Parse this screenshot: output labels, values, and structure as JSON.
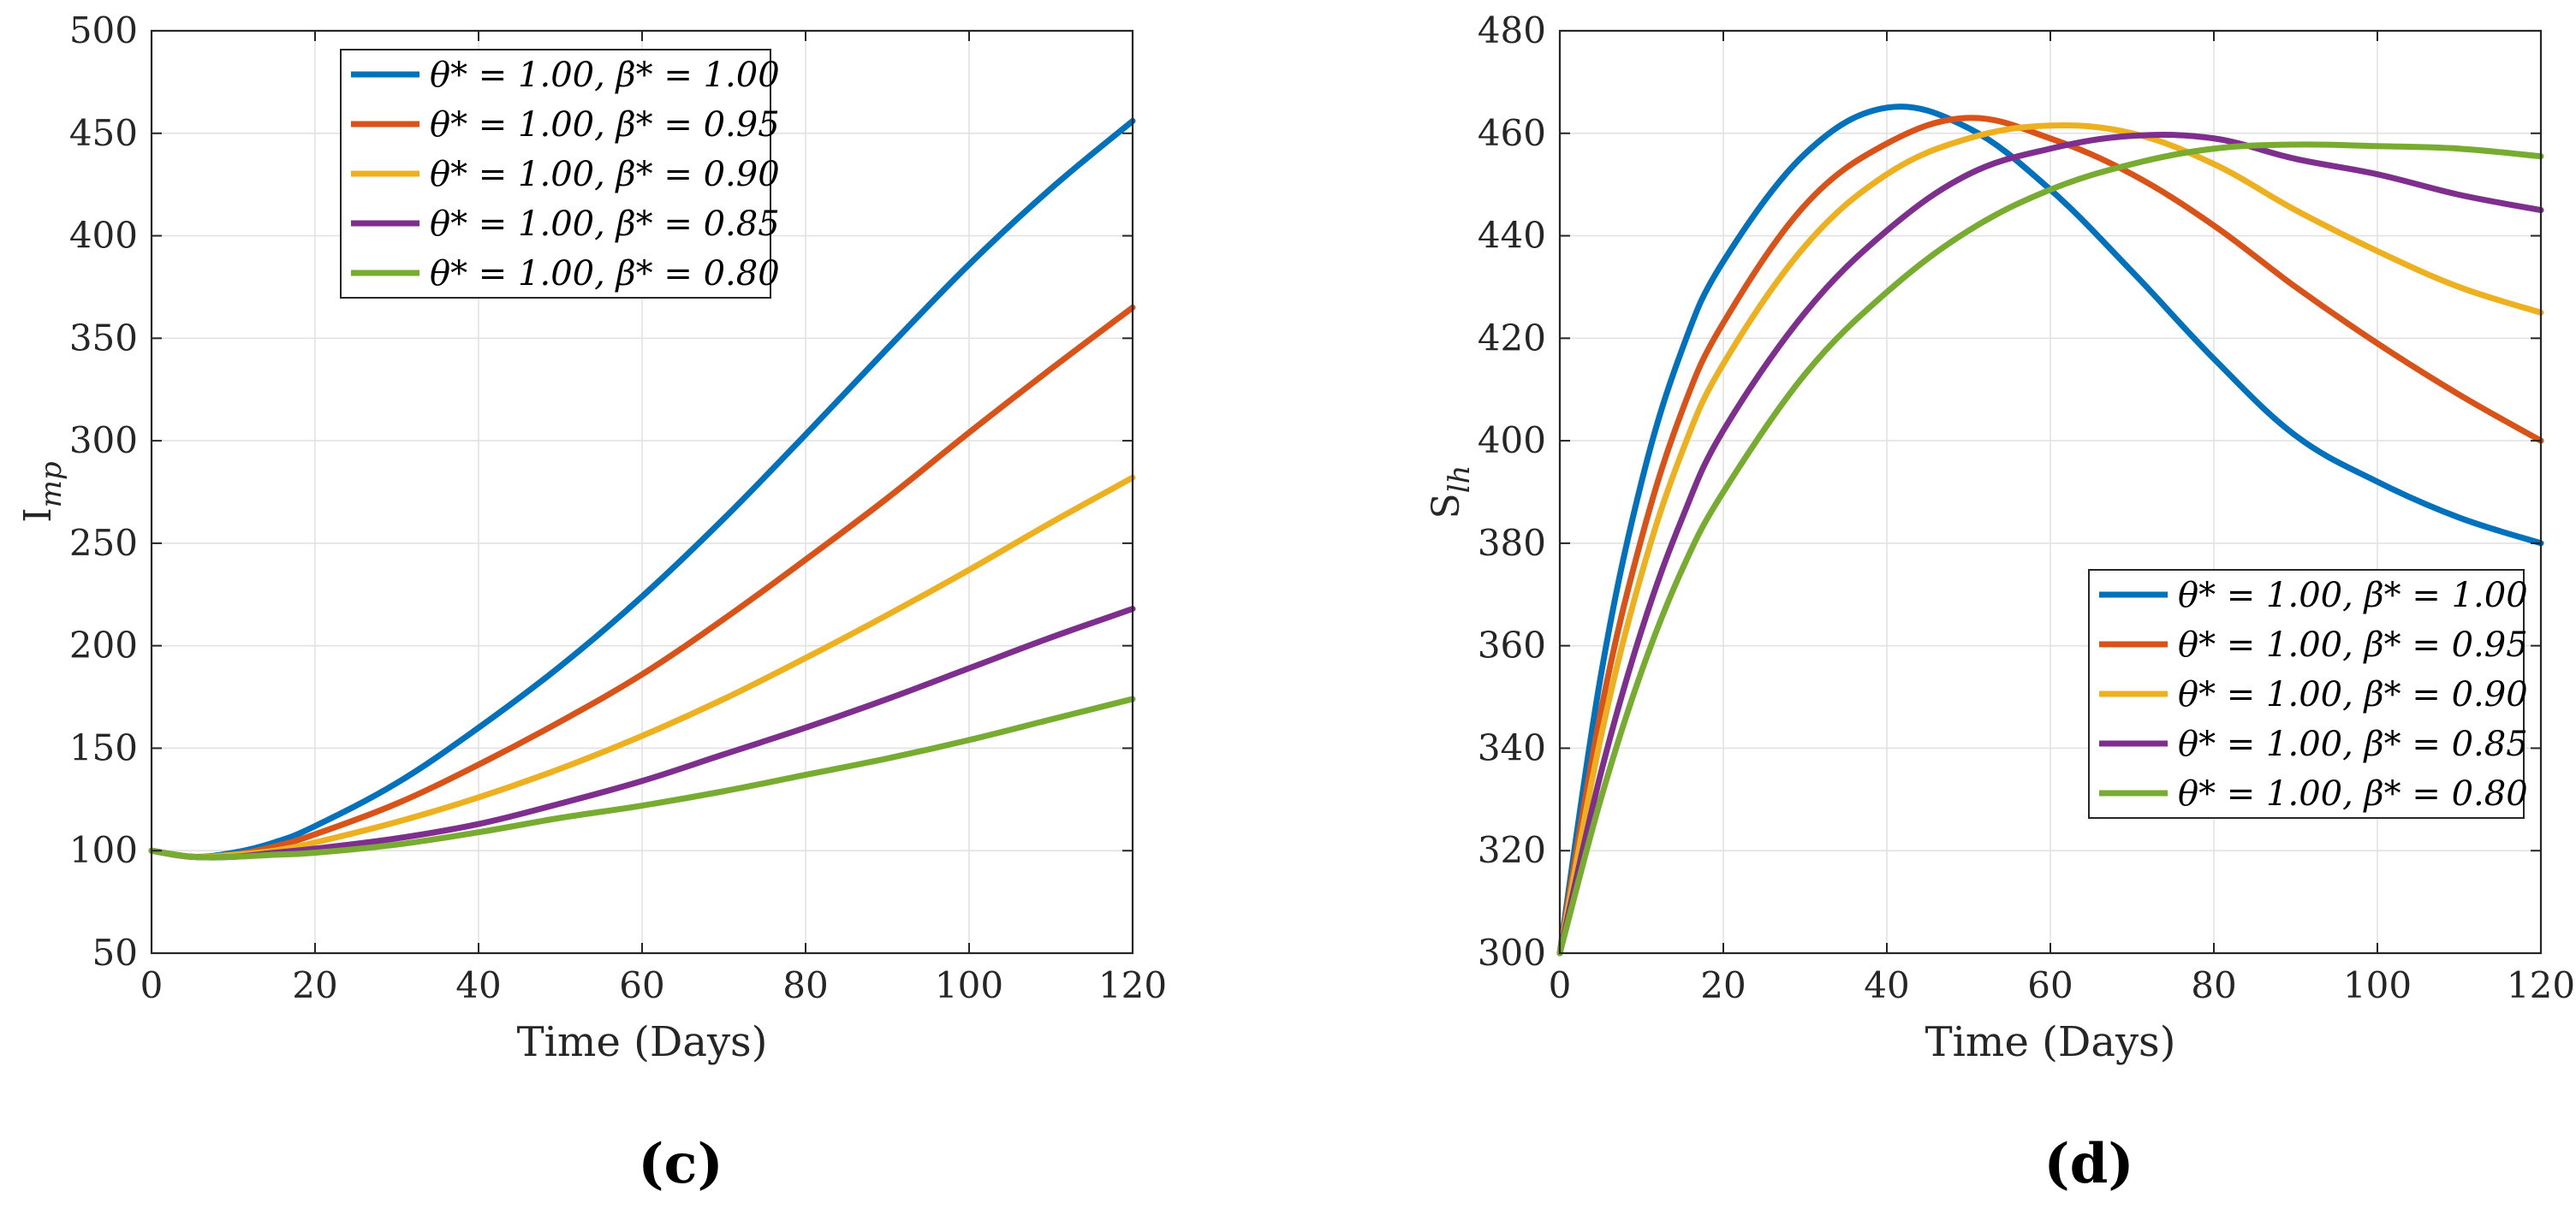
{
  "chart_data": [
    {
      "id": "c",
      "type": "line",
      "caption": "(c)",
      "xlabel": "Time (Days)",
      "ylabel": "I_mp",
      "ylabel_main": "I",
      "ylabel_sub": "mp",
      "xlim": [
        0,
        120
      ],
      "ylim": [
        50,
        500
      ],
      "xticks": [
        0,
        20,
        40,
        60,
        80,
        100,
        120
      ],
      "yticks": [
        50,
        100,
        150,
        200,
        250,
        300,
        350,
        400,
        450,
        500
      ],
      "grid": true,
      "legend_position": "top-center",
      "x": [
        0,
        5,
        10,
        15,
        20,
        30,
        40,
        50,
        60,
        70,
        80,
        90,
        100,
        110,
        120
      ],
      "series": [
        {
          "name": "θ* = 1.00, β* = 1.00",
          "color": "#0072BD",
          "values": [
            100,
            97,
            99,
            104,
            112,
            133,
            160,
            190,
            224,
            262,
            303,
            345,
            386,
            423,
            456
          ]
        },
        {
          "name": "θ* = 1.00, β* = 0.95",
          "color": "#D95319",
          "values": [
            100,
            97,
            98,
            102,
            108,
            123,
            142,
            163,
            186,
            213,
            242,
            272,
            304,
            335,
            365
          ]
        },
        {
          "name": "θ* = 1.00, β* = 0.90",
          "color": "#EDB120",
          "values": [
            100,
            97,
            98,
            100,
            104,
            114,
            126,
            140,
            156,
            174,
            194,
            215,
            237,
            260,
            282
          ]
        },
        {
          "name": "θ* = 1.00, β* = 0.85",
          "color": "#7E2F8E",
          "values": [
            100,
            97,
            97,
            99,
            101,
            106,
            113,
            123,
            134,
            147,
            160,
            174,
            189,
            204,
            218
          ]
        },
        {
          "name": "θ* = 1.00, β* = 0.80",
          "color": "#77AC30",
          "values": [
            100,
            97,
            97,
            98,
            99,
            103,
            109,
            116,
            122,
            129,
            137,
            145,
            154,
            164,
            174
          ]
        }
      ]
    },
    {
      "id": "d",
      "type": "line",
      "caption": "(d)",
      "xlabel": "Time (Days)",
      "ylabel": "S_lh",
      "ylabel_main": "S",
      "ylabel_sub": "lh",
      "xlim": [
        0,
        120
      ],
      "ylim": [
        300,
        480
      ],
      "xticks": [
        0,
        20,
        40,
        60,
        80,
        100,
        120
      ],
      "yticks": [
        300,
        320,
        340,
        360,
        380,
        400,
        420,
        440,
        460,
        480
      ],
      "grid": true,
      "legend_position": "bottom-right",
      "x": [
        0,
        5,
        10,
        15,
        20,
        30,
        40,
        50,
        60,
        70,
        80,
        90,
        100,
        110,
        120
      ],
      "series": [
        {
          "name": "θ* = 1.00, β* = 1.00",
          "color": "#0072BD",
          "values": [
            300,
            354,
            392,
            418,
            435,
            456,
            465,
            461,
            449,
            433,
            416,
            401,
            392,
            385,
            380
          ]
        },
        {
          "name": "θ* = 1.00, β* = 0.95",
          "color": "#D95319",
          "values": [
            300,
            347,
            381,
            406,
            423,
            446,
            458,
            463,
            459,
            452,
            442,
            430,
            419,
            409,
            400
          ]
        },
        {
          "name": "θ* = 1.00, β* = 0.90",
          "color": "#EDB120",
          "values": [
            300,
            342,
            374,
            398,
            415,
            438,
            452,
            459,
            461.5,
            460,
            454,
            445,
            437,
            430,
            425
          ]
        },
        {
          "name": "θ* = 1.00, β* = 0.85",
          "color": "#7E2F8E",
          "values": [
            300,
            335,
            363,
            385,
            402,
            425,
            441,
            452,
            457,
            459.5,
            459,
            455,
            452,
            448,
            445
          ]
        },
        {
          "name": "θ* = 1.00, β* = 0.80",
          "color": "#77AC30",
          "values": [
            300,
            330,
            355,
            375,
            390,
            413,
            429,
            441,
            449,
            454,
            457,
            457.8,
            457.5,
            457,
            455.5
          ]
        }
      ]
    }
  ]
}
